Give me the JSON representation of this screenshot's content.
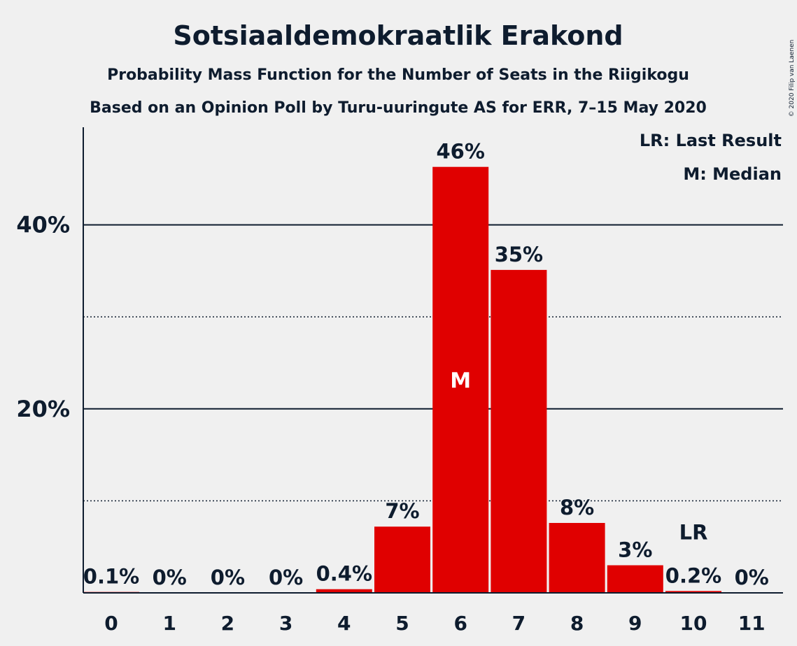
{
  "title": "Sotsiaaldemokraatlik Erakond",
  "subtitle1": "Probability Mass Function for the Number of Seats in the Riigikogu",
  "subtitle2": "Based on an Opinion Poll by Turu-uuringute AS for ERR, 7–15 May 2020",
  "legend_lr": "LR: Last Result",
  "legend_m": "M: Median",
  "copyright": "© 2020 Filip van Laenen",
  "colors": {
    "bar": "#e00000",
    "text": "#0e1c2e",
    "background": "#f0f0f0"
  },
  "chart_data": {
    "type": "bar",
    "categories": [
      "0",
      "1",
      "2",
      "3",
      "4",
      "5",
      "6",
      "7",
      "8",
      "9",
      "10",
      "11"
    ],
    "values": [
      0.1,
      0,
      0,
      0,
      0.4,
      7.2,
      46.3,
      35.1,
      7.6,
      3.0,
      0.2,
      0
    ],
    "value_labels": [
      "0.1%",
      "0%",
      "0%",
      "0%",
      "0.4%",
      "7%",
      "46%",
      "35%",
      "8%",
      "3%",
      "0.2%",
      "0%"
    ],
    "yticks": [
      {
        "value": 20,
        "label": "20%"
      },
      {
        "value": 40,
        "label": "40%"
      }
    ],
    "minor_gridlines": [
      10,
      30
    ],
    "ylim": [
      0,
      50
    ],
    "median_category": "6",
    "median_marker": "M",
    "last_result_category": "10",
    "last_result_marker": "LR",
    "legend_position": "top-right"
  }
}
